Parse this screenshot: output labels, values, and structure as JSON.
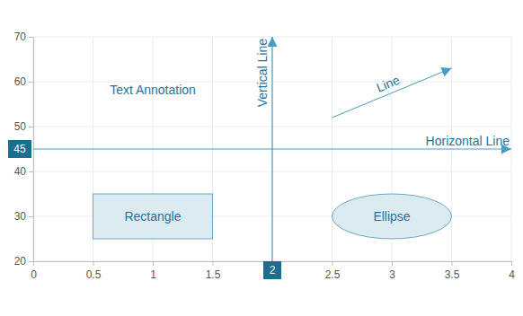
{
  "chart_data": {
    "type": "annotation",
    "xlim": [
      0,
      4
    ],
    "xticks": [
      0,
      0.5,
      1,
      1.5,
      2,
      2.5,
      3,
      3.5,
      4
    ],
    "ylim": [
      20,
      70
    ],
    "yticks": [
      20,
      30,
      40,
      50,
      60,
      70
    ],
    "grid": true,
    "annotations": [
      {
        "type": "text",
        "text": "Text Annotation",
        "x": 1,
        "y": 58
      },
      {
        "type": "vertical_line",
        "text": "Vertical Line",
        "x": 2
      },
      {
        "type": "horizontal_line",
        "text": "Horizontal Line",
        "y": 45
      },
      {
        "type": "line",
        "text": "Line",
        "x": [
          2.5,
          3.5
        ],
        "y": [
          52,
          63
        ]
      },
      {
        "type": "rectangle",
        "text": "Rectangle",
        "x": [
          0.5,
          1.5
        ],
        "y": [
          25,
          35
        ]
      },
      {
        "type": "ellipse",
        "text": "Ellipse",
        "x": [
          2.5,
          3.5
        ],
        "y": [
          25,
          35
        ]
      }
    ]
  }
}
